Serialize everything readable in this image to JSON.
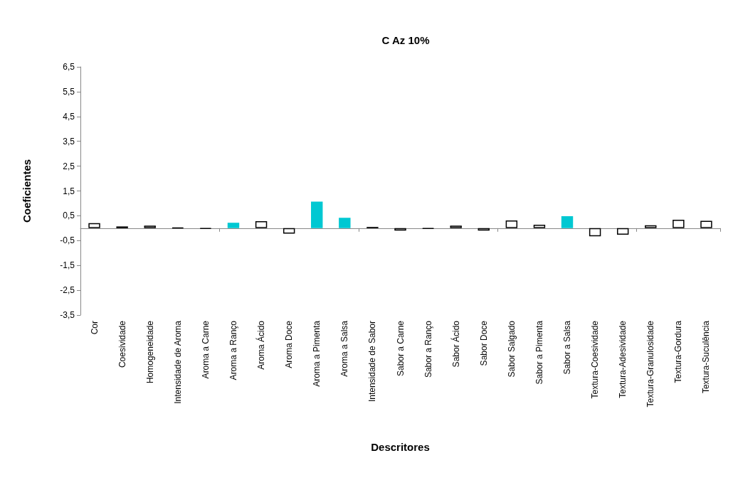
{
  "chart_data": {
    "type": "bar",
    "title": "C Az 10%",
    "xlabel": "Descritores",
    "ylabel": "Coeficientes",
    "categories": [
      "Cor",
      "Coesividade",
      "Homogeneidade",
      "Intensidade de Aroma",
      "Aroma a Carne",
      "Aroma a Ranço",
      "Aroma Ácido",
      "Aroma Doce",
      "Aroma a Pimenta",
      "Aroma a Salsa",
      "Intensidade de Sabor",
      "Sabor a Carne",
      "Sabor a Ranço",
      "Sabor Ácido",
      "Sabor Doce",
      "Sabor Salgado",
      "Sabor a Pimenta",
      "Sabor a Salsa",
      "Textura-Coesividade",
      "Textura-Adesividade",
      "Textura-Granulosidade",
      "Textura-Gordura",
      "Textura-Suculência"
    ],
    "values": [
      0.2,
      0.07,
      0.1,
      0.02,
      -0.03,
      0.22,
      0.28,
      -0.22,
      1.07,
      0.42,
      0.05,
      -0.1,
      -0.02,
      0.1,
      -0.1,
      0.31,
      0.14,
      0.48,
      -0.33,
      -0.26,
      0.12,
      0.34,
      0.3
    ],
    "colors": [
      "#ffffff",
      "#ffffff",
      "#ffffff",
      "#000000",
      "#000000",
      "#00c8d2",
      "#ffffff",
      "#ffffff",
      "#00c8d2",
      "#00c8d2",
      "#000000",
      "#ffffff",
      "#000000",
      "#ffffff",
      "#ffffff",
      "#ffffff",
      "#ffffff",
      "#00c8d2",
      "#ffffff",
      "#ffffff",
      "#ffffff",
      "#ffffff",
      "#ffffff"
    ],
    "ylim": [
      -3.5,
      6.5
    ],
    "yticks": [
      {
        "value": -3.5,
        "label": "-3,5"
      },
      {
        "value": -2.5,
        "label": "-2,5"
      },
      {
        "value": -1.5,
        "label": "-1,5"
      },
      {
        "value": -0.5,
        "label": "-0,5"
      },
      {
        "value": 0.5,
        "label": "0,5"
      },
      {
        "value": 1.5,
        "label": "1,5"
      },
      {
        "value": 2.5,
        "label": "2,5"
      },
      {
        "value": 3.5,
        "label": "3,5"
      },
      {
        "value": 4.5,
        "label": "4,5"
      },
      {
        "value": 5.5,
        "label": "5,5"
      },
      {
        "value": 6.5,
        "label": "6,5"
      }
    ],
    "grid": false
  }
}
